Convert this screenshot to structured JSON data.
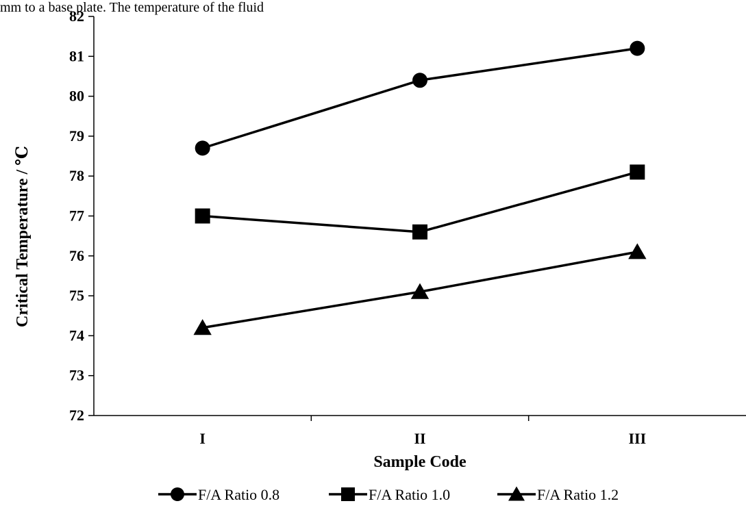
{
  "page": {
    "top_text": "mm to a base plate. The temperature of the fluid"
  },
  "chart_data": {
    "type": "line",
    "categories": [
      "I",
      "II",
      "III"
    ],
    "series": [
      {
        "name": "F/A Ratio 0.8",
        "marker": "circle",
        "values": [
          78.7,
          80.4,
          81.2
        ]
      },
      {
        "name": "F/A Ratio 1.0",
        "marker": "square",
        "values": [
          77.0,
          76.6,
          78.1
        ]
      },
      {
        "name": "F/A Ratio 1.2",
        "marker": "triangle",
        "values": [
          74.2,
          75.1,
          76.1
        ]
      }
    ],
    "xlabel": "Sample Code",
    "ylabel": "Critical Temperature  / ℃",
    "ylim": [
      72,
      82
    ],
    "yticks": [
      72,
      73,
      74,
      75,
      76,
      77,
      78,
      79,
      80,
      81,
      82
    ],
    "grid": false,
    "legend_position": "bottom",
    "color": "#000000"
  }
}
